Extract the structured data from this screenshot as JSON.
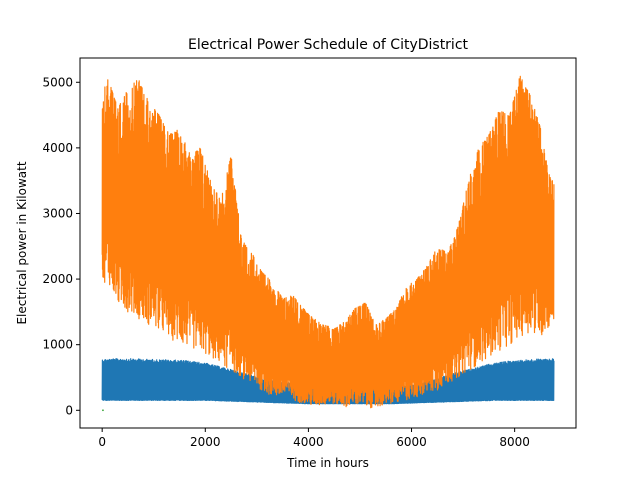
{
  "chart_data": {
    "type": "line",
    "title": "Electrical Power Schedule of CityDistrict",
    "xlabel": "Time in hours",
    "ylabel": "Electrical power in Kilowatt",
    "xlim": [
      -430,
      9190
    ],
    "ylim": [
      -270,
      5370
    ],
    "x_ticks": [
      0,
      2000,
      4000,
      6000,
      8000
    ],
    "y_ticks": [
      0,
      1000,
      2000,
      3000,
      4000,
      5000
    ],
    "grid": false,
    "legend": "none",
    "series": [
      {
        "color": "#1f77b4",
        "x": [
          0,
          400,
          800,
          1200,
          1600,
          2000,
          2400,
          2800,
          3200,
          3600,
          4000,
          4400,
          4800,
          5200,
          5600,
          6000,
          6400,
          6800,
          7200,
          7600,
          8000,
          8400,
          8760
        ],
        "y_min": [
          150,
          150,
          150,
          150,
          150,
          150,
          140,
          130,
          120,
          110,
          100,
          100,
          100,
          100,
          100,
          110,
          120,
          130,
          140,
          150,
          150,
          150,
          150
        ],
        "y_max": [
          780,
          790,
          780,
          770,
          760,
          720,
          640,
          560,
          460,
          420,
          380,
          350,
          330,
          340,
          350,
          380,
          460,
          560,
          640,
          720,
          760,
          780,
          790
        ]
      },
      {
        "color": "#ff7f0e",
        "x": [
          0,
          100,
          300,
          500,
          700,
          900,
          1100,
          1300,
          1500,
          1700,
          1900,
          2100,
          2300,
          2500,
          2700,
          2900,
          3100,
          3300,
          3500,
          3700,
          3900,
          4100,
          4300,
          4500,
          4700,
          4900,
          5100,
          5300,
          5500,
          5700,
          5900,
          6100,
          6300,
          6500,
          6700,
          6900,
          7100,
          7300,
          7500,
          7700,
          7900,
          8100,
          8300,
          8500,
          8700,
          8760
        ],
        "y_min": [
          1900,
          2000,
          1600,
          1500,
          1400,
          1300,
          1200,
          1100,
          1000,
          950,
          900,
          800,
          700,
          600,
          500,
          400,
          300,
          200,
          200,
          150,
          100,
          50,
          80,
          100,
          50,
          80,
          50,
          30,
          80,
          100,
          150,
          200,
          250,
          300,
          400,
          500,
          600,
          700,
          800,
          900,
          1000,
          1100,
          1200,
          1100,
          1300,
          1300
        ],
        "y_max": [
          4800,
          5100,
          4600,
          4900,
          5050,
          4700,
          4500,
          4200,
          4300,
          3900,
          4000,
          3500,
          3200,
          3900,
          2600,
          2400,
          2100,
          1950,
          1700,
          1750,
          1550,
          1400,
          1300,
          1250,
          1350,
          1550,
          1650,
          1300,
          1400,
          1550,
          1900,
          2000,
          2200,
          2500,
          2400,
          2800,
          3500,
          4000,
          4200,
          4600,
          4500,
          5100,
          4800,
          4300,
          3500,
          3500
        ]
      },
      {
        "color": "#2ca02c",
        "x": [
          0,
          30
        ],
        "y": [
          0,
          0
        ]
      }
    ]
  }
}
